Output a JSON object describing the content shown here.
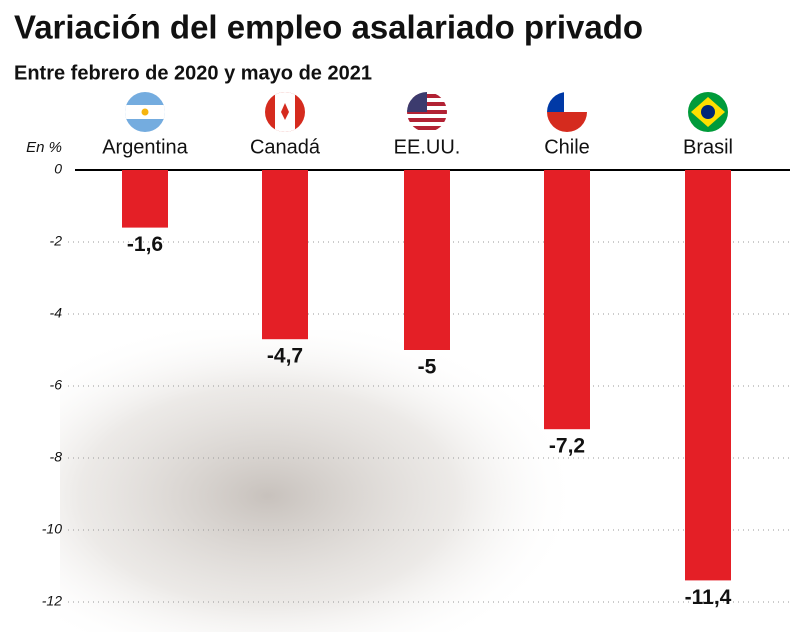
{
  "chart_data": {
    "type": "bar",
    "title": "Variación del empleo asalariado privado",
    "subtitle": "Entre febrero de 2020 y mayo de 2021",
    "y_label": "En %",
    "categories": [
      "Argentina",
      "Canadá",
      "EE.UU.",
      "Chile",
      "Brasil"
    ],
    "values": [
      -1.6,
      -4.7,
      -5,
      -7.2,
      -11.4
    ],
    "value_labels": [
      "-1,6",
      "-4,7",
      "-5",
      "-7,2",
      "-11,4"
    ],
    "color": "#e41f26",
    "ylim": [
      -12,
      0
    ],
    "yticks": [
      0,
      -2,
      -4,
      -6,
      -8,
      -10,
      -12
    ],
    "grid": true
  }
}
